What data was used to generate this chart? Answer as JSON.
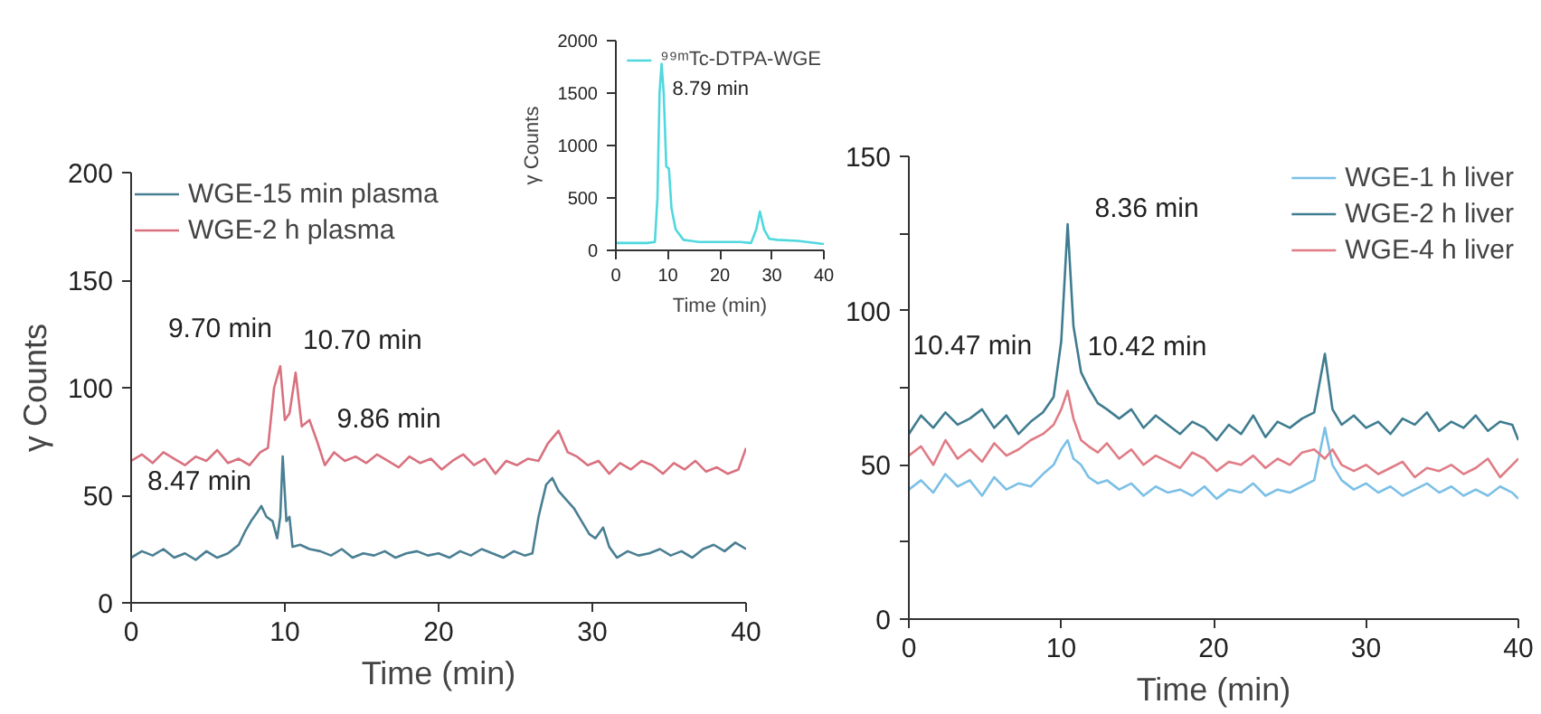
{
  "chart_data": [
    {
      "type": "line",
      "xlabel": "Time (min)",
      "ylabel": "γ Counts",
      "xlim": [
        0,
        40
      ],
      "ylim": [
        0,
        200
      ],
      "xticks": [
        0,
        10,
        20,
        30,
        40
      ],
      "yticks": [
        0,
        50,
        100,
        150,
        200
      ],
      "grid": false,
      "legend": "top left",
      "marker": "none",
      "line_style": "solid",
      "series": [
        {
          "name": "WGE-15 min plasma",
          "color": "#4a7f93",
          "x": [
            0,
            0.7,
            1.4,
            2.1,
            2.8,
            3.5,
            4.2,
            4.9,
            5.6,
            6.3,
            7.0,
            7.4,
            7.8,
            8.2,
            8.47,
            8.8,
            9.2,
            9.5,
            9.7,
            9.86,
            10.1,
            10.3,
            10.5,
            11,
            11.6,
            12.3,
            13,
            13.7,
            14.4,
            15.1,
            15.8,
            16.5,
            17.2,
            17.9,
            18.6,
            19.3,
            20,
            20.7,
            21.4,
            22.1,
            22.8,
            23.5,
            24.2,
            24.9,
            25.6,
            26.1,
            26.5,
            27,
            27.4,
            27.8,
            28.3,
            28.8,
            29.3,
            29.8,
            30.2,
            30.7,
            31.1,
            31.6,
            32.3,
            33,
            33.7,
            34.4,
            35.1,
            35.8,
            36.5,
            37.2,
            37.9,
            38.6,
            39.3,
            40
          ],
          "values": [
            21,
            24,
            22,
            25,
            21,
            23,
            20,
            24,
            21,
            23,
            27,
            33,
            38,
            42,
            45,
            40,
            38,
            30,
            40,
            68,
            38,
            40,
            26,
            27,
            25,
            24,
            22,
            25,
            21,
            23,
            22,
            24,
            21,
            23,
            24,
            22,
            23,
            21,
            24,
            22,
            25,
            23,
            21,
            24,
            22,
            23,
            40,
            55,
            58,
            52,
            48,
            44,
            38,
            32,
            30,
            35,
            26,
            21,
            24,
            22,
            23,
            25,
            22,
            24,
            21,
            25,
            27,
            24,
            28,
            25
          ]
        },
        {
          "name": "WGE-2 h plasma",
          "color": "#d9717f",
          "x": [
            0,
            0.7,
            1.4,
            2.1,
            2.8,
            3.5,
            4.2,
            4.9,
            5.6,
            6.3,
            7,
            7.7,
            8.4,
            8.9,
            9.3,
            9.7,
            10.0,
            10.3,
            10.7,
            11.1,
            11.6,
            12.1,
            12.6,
            13.2,
            13.9,
            14.6,
            15.3,
            16,
            16.7,
            17.4,
            18.1,
            18.8,
            19.5,
            20.2,
            20.9,
            21.6,
            22.3,
            23,
            23.7,
            24.4,
            25.1,
            25.8,
            26.5,
            27.1,
            27.8,
            28.4,
            29,
            29.7,
            30.4,
            31.1,
            31.8,
            32.5,
            33.2,
            33.9,
            34.6,
            35.3,
            36,
            36.7,
            37.4,
            38.1,
            38.8,
            39.5,
            40
          ],
          "values": [
            66,
            69,
            65,
            70,
            67,
            64,
            68,
            66,
            71,
            65,
            67,
            64,
            70,
            72,
            100,
            110,
            85,
            88,
            107,
            82,
            85,
            75,
            64,
            70,
            66,
            68,
            65,
            69,
            66,
            63,
            68,
            65,
            67,
            62,
            66,
            69,
            64,
            67,
            60,
            66,
            64,
            67,
            66,
            74,
            80,
            70,
            68,
            64,
            66,
            60,
            65,
            62,
            66,
            64,
            60,
            65,
            62,
            66,
            61,
            63,
            60,
            62,
            72
          ]
        }
      ],
      "annotations": [
        {
          "text": "9.70 min",
          "x": 9.7,
          "y": 110
        },
        {
          "text": "10.70 min",
          "x": 10.7,
          "y": 107
        },
        {
          "text": "9.86 min",
          "x": 9.86,
          "y": 68
        },
        {
          "text": "8.47 min",
          "x": 8.47,
          "y": 45
        }
      ]
    },
    {
      "type": "line",
      "xlabel": "Time (min)",
      "ylabel": "γ Counts",
      "xlim": [
        0,
        40
      ],
      "ylim": [
        0,
        2000
      ],
      "xticks": [
        0,
        10,
        20,
        30,
        40
      ],
      "yticks": [
        0,
        500,
        1000,
        1500,
        2000
      ],
      "grid": false,
      "legend": "top right",
      "marker": "none",
      "line_style": "solid",
      "series": [
        {
          "name": "⁹⁹ᵐTc-DTPA-WGE",
          "color": "#4fd8de",
          "x": [
            0,
            2,
            4,
            6,
            7.5,
            8,
            8.4,
            8.79,
            9.2,
            9.7,
            10.2,
            10.7,
            11.5,
            13,
            16,
            20,
            24,
            26,
            27,
            27.7,
            28.5,
            29.5,
            31,
            35,
            40
          ],
          "values": [
            70,
            70,
            70,
            70,
            80,
            500,
            1500,
            1780,
            1500,
            800,
            780,
            400,
            200,
            100,
            80,
            80,
            80,
            70,
            200,
            370,
            200,
            110,
            100,
            90,
            60
          ]
        }
      ],
      "annotations": [
        {
          "text": "8.79 min",
          "x": 8.79,
          "y": 1780
        }
      ]
    },
    {
      "type": "line",
      "xlabel": "Time (min)",
      "xlim": [
        0,
        40
      ],
      "ylim": [
        0,
        150
      ],
      "xticks": [
        0,
        10,
        20,
        30,
        40
      ],
      "yticks": [
        0,
        {
          "value": 25,
          "label": null
        },
        50,
        {
          "value": 75,
          "label": null
        },
        100,
        {
          "value": 125,
          "label": null
        },
        150
      ],
      "grid": false,
      "legend": "top right",
      "marker": "none",
      "line_style": "solid",
      "x": [
        0,
        0.8,
        1.6,
        2.4,
        3.2,
        4,
        4.8,
        5.6,
        6.4,
        7.2,
        8,
        8.8,
        9.5,
        10,
        10.42,
        10.8,
        11.3,
        11.8,
        12.4,
        13,
        13.8,
        14.6,
        15.4,
        16.2,
        17,
        17.8,
        18.6,
        19.4,
        20.2,
        21,
        21.8,
        22.6,
        23.4,
        24.2,
        25,
        25.8,
        26.6,
        27.3,
        27.8,
        28.4,
        29.2,
        30,
        30.8,
        31.6,
        32.4,
        33.2,
        34,
        34.8,
        35.6,
        36.4,
        37.2,
        38,
        38.8,
        39.6,
        40
      ],
      "series": [
        {
          "name": "WGE-1 h liver",
          "color": "#7cc0e6",
          "values": [
            42,
            45,
            41,
            47,
            43,
            45,
            40,
            46,
            42,
            44,
            43,
            47,
            50,
            55,
            58,
            52,
            50,
            46,
            44,
            45,
            42,
            44,
            40,
            43,
            41,
            42,
            40,
            43,
            39,
            42,
            41,
            44,
            40,
            42,
            41,
            43,
            45,
            62,
            50,
            45,
            42,
            44,
            41,
            43,
            40,
            42,
            44,
            41,
            43,
            40,
            42,
            40,
            43,
            41,
            39
          ]
        },
        {
          "name": "WGE-2 h liver",
          "color": "#3f7c90",
          "values": [
            60,
            66,
            62,
            67,
            63,
            65,
            68,
            62,
            66,
            60,
            64,
            67,
            72,
            90,
            128,
            95,
            80,
            75,
            70,
            68,
            65,
            68,
            62,
            66,
            63,
            60,
            64,
            62,
            58,
            63,
            60,
            66,
            59,
            64,
            62,
            65,
            67,
            86,
            68,
            63,
            66,
            62,
            64,
            60,
            65,
            63,
            67,
            61,
            64,
            62,
            66,
            61,
            64,
            63,
            58
          ]
        },
        {
          "name": "WGE-4 h liver",
          "color": "#e07c86",
          "values": [
            53,
            56,
            50,
            58,
            52,
            55,
            51,
            57,
            53,
            55,
            58,
            60,
            63,
            68,
            74,
            65,
            58,
            56,
            54,
            57,
            52,
            55,
            50,
            53,
            51,
            49,
            54,
            52,
            48,
            51,
            50,
            53,
            49,
            52,
            50,
            54,
            55,
            52,
            55,
            50,
            48,
            50,
            47,
            49,
            51,
            46,
            49,
            48,
            50,
            47,
            49,
            52,
            46,
            50,
            52
          ]
        }
      ],
      "annotations": [
        {
          "text": "8.36 min",
          "x": 10.42,
          "y": 128
        },
        {
          "text": "10.47 min",
          "x": 10.47,
          "y": 74
        },
        {
          "text": "10.42 min",
          "x": 10.42,
          "y": 58
        }
      ]
    }
  ]
}
